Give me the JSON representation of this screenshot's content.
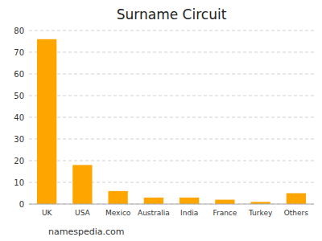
{
  "chart_data": {
    "type": "bar",
    "title": "Surname Circuit",
    "categories": [
      "UK",
      "USA",
      "Mexico",
      "Australia",
      "India",
      "France",
      "Turkey",
      "Others"
    ],
    "values": [
      76,
      18,
      6,
      3,
      3,
      2,
      1,
      5
    ],
    "color": "#FFA500",
    "ylim": [
      0,
      80
    ],
    "yticks": [
      0,
      10,
      20,
      30,
      40,
      50,
      60,
      70,
      80
    ],
    "grid": true,
    "annotations": [
      "namespedia.com"
    ]
  }
}
